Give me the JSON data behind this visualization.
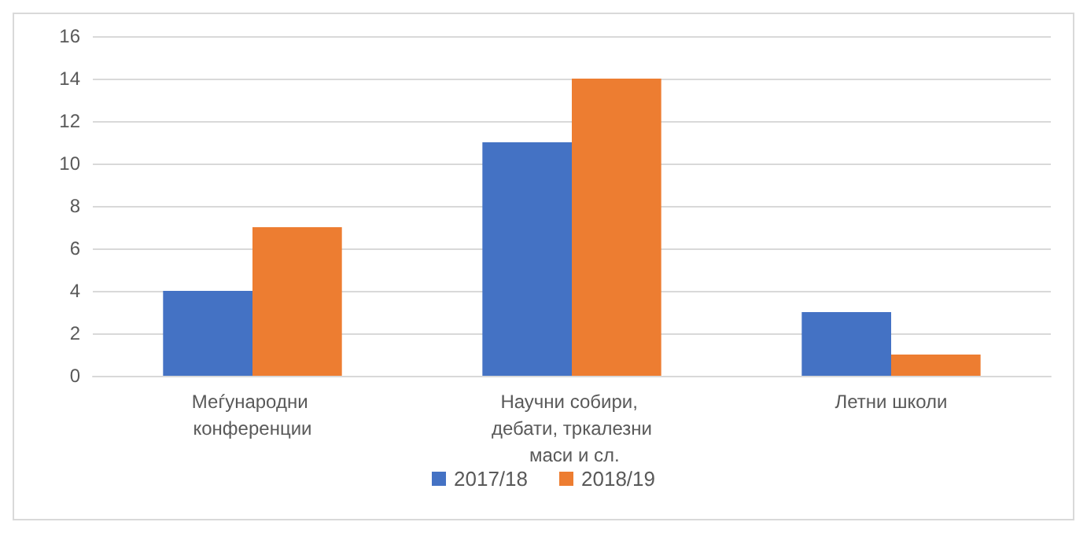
{
  "chart_data": {
    "type": "bar",
    "categories": [
      "Меѓународни конференции",
      "Научни собири, дебати, тркалезни маси и сл.",
      "Летни школи"
    ],
    "series": [
      {
        "name": "2017/18",
        "color": "#4472c4",
        "values": [
          4,
          11,
          3
        ]
      },
      {
        "name": "2018/19",
        "color": "#ed7d31",
        "values": [
          7,
          14,
          1
        ]
      }
    ],
    "ylim": [
      0,
      16
    ],
    "yticks": [
      0,
      2,
      4,
      6,
      8,
      10,
      12,
      14,
      16
    ],
    "grid": "y",
    "legend": "bottom"
  }
}
